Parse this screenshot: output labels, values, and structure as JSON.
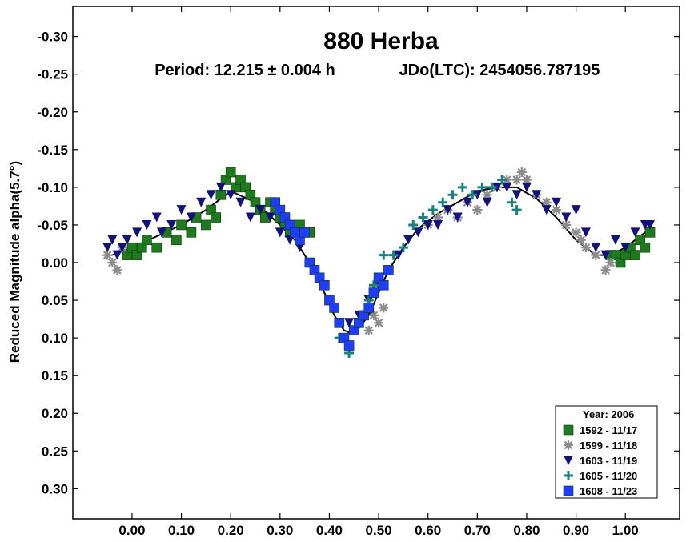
{
  "chart_data": {
    "type": "scatter",
    "title": "880 Herba",
    "subtitle_period": "Period: 12.215 ± 0.004 h",
    "subtitle_epoch": "JDo(LTC): 2454056.787195",
    "ylabel": "Reduced Magnitude alpha(5.7°)",
    "xlabel": "",
    "xlim": [
      -0.12,
      1.11
    ],
    "ylim": [
      -0.34,
      0.34
    ],
    "y_inverted": true,
    "x_ticks": [
      0.0,
      0.1,
      0.2,
      0.3,
      0.4,
      0.5,
      0.6,
      0.7,
      0.8,
      0.9,
      1.0
    ],
    "x_tick_labels": [
      "0.00",
      "0.10",
      "0.20",
      "0.30",
      "0.40",
      "0.50",
      "0.60",
      "0.70",
      "0.80",
      "0.90",
      "1.00"
    ],
    "y_ticks": [
      -0.3,
      -0.25,
      -0.2,
      -0.15,
      -0.1,
      -0.05,
      0.0,
      0.05,
      0.1,
      0.15,
      0.2,
      0.25,
      0.3
    ],
    "y_tick_labels": [
      "-0.30",
      "-0.25",
      "-0.20",
      "-0.15",
      "-0.10",
      "-0.05",
      "0.00",
      "0.05",
      "0.10",
      "0.15",
      "0.20",
      "0.25",
      "0.30"
    ],
    "grid": false,
    "legend": {
      "placement": "bottom-right",
      "title": "Year: 2006",
      "entries": [
        {
          "label": "1592 - 11/17",
          "color": "#1f7a1f",
          "marker": "square"
        },
        {
          "label": "1599 - 11/18",
          "color": "#8c8c8c",
          "marker": "asterisk"
        },
        {
          "label": "1603 - 11/19",
          "color": "#12127a",
          "marker": "triangle-down"
        },
        {
          "label": "1605 - 11/20",
          "color": "#1a8080",
          "marker": "plus"
        },
        {
          "label": "1608 - 11/23",
          "color": "#1f3dff",
          "marker": "square"
        }
      ]
    },
    "fit_curve": {
      "color": "#000000",
      "x": [
        -0.04,
        0.0,
        0.05,
        0.1,
        0.15,
        0.2,
        0.25,
        0.3,
        0.33,
        0.36,
        0.39,
        0.41,
        0.43,
        0.45,
        0.48,
        0.5,
        0.52,
        0.55,
        0.58,
        0.62,
        0.66,
        0.7,
        0.74,
        0.78,
        0.82,
        0.86,
        0.9,
        0.94,
        0.97,
        1.0,
        1.03,
        1.05
      ],
      "y": [
        -0.01,
        -0.02,
        -0.035,
        -0.05,
        -0.07,
        -0.095,
        -0.08,
        -0.05,
        -0.03,
        0.0,
        0.04,
        0.07,
        0.09,
        0.095,
        0.07,
        0.04,
        0.01,
        -0.02,
        -0.045,
        -0.065,
        -0.08,
        -0.095,
        -0.1,
        -0.1,
        -0.085,
        -0.06,
        -0.03,
        -0.01,
        -0.01,
        -0.02,
        -0.035,
        -0.045
      ]
    },
    "series": [
      {
        "name": "1592 - 11/17",
        "points": [
          [
            -0.01,
            -0.01
          ],
          [
            0.0,
            -0.02
          ],
          [
            0.01,
            -0.01
          ],
          [
            0.02,
            -0.02
          ],
          [
            0.03,
            -0.03
          ],
          [
            0.05,
            -0.02
          ],
          [
            0.07,
            -0.04
          ],
          [
            0.09,
            -0.03
          ],
          [
            0.1,
            -0.05
          ],
          [
            0.12,
            -0.04
          ],
          [
            0.13,
            -0.06
          ],
          [
            0.15,
            -0.05
          ],
          [
            0.16,
            -0.07
          ],
          [
            0.17,
            -0.06
          ],
          [
            0.18,
            -0.09
          ],
          [
            0.19,
            -0.11
          ],
          [
            0.2,
            -0.12
          ],
          [
            0.21,
            -0.1
          ],
          [
            0.22,
            -0.11
          ],
          [
            0.23,
            -0.1
          ],
          [
            0.24,
            -0.09
          ],
          [
            0.25,
            -0.08
          ],
          [
            0.26,
            -0.07
          ],
          [
            0.27,
            -0.06
          ],
          [
            0.28,
            -0.08
          ],
          [
            0.29,
            -0.07
          ],
          [
            0.3,
            -0.06
          ],
          [
            0.31,
            -0.05
          ],
          [
            0.32,
            -0.04
          ],
          [
            0.34,
            -0.05
          ],
          [
            0.36,
            -0.04
          ],
          [
            0.97,
            -0.01
          ],
          [
            0.98,
            -0.01
          ],
          [
            0.99,
            0.0
          ],
          [
            1.0,
            -0.01
          ],
          [
            1.01,
            -0.02
          ],
          [
            1.02,
            -0.01
          ],
          [
            1.03,
            -0.03
          ],
          [
            1.04,
            -0.02
          ],
          [
            1.05,
            -0.04
          ]
        ]
      },
      {
        "name": "1599 - 11/18",
        "points": [
          [
            -0.05,
            -0.01
          ],
          [
            -0.04,
            0.0
          ],
          [
            -0.03,
            0.01
          ],
          [
            -0.02,
            -0.02
          ],
          [
            0.48,
            0.09
          ],
          [
            0.49,
            0.07
          ],
          [
            0.5,
            0.08
          ],
          [
            0.51,
            0.06
          ],
          [
            0.6,
            -0.05
          ],
          [
            0.62,
            -0.06
          ],
          [
            0.64,
            -0.07
          ],
          [
            0.66,
            -0.06
          ],
          [
            0.68,
            -0.08
          ],
          [
            0.7,
            -0.07
          ],
          [
            0.72,
            -0.09
          ],
          [
            0.74,
            -0.1
          ],
          [
            0.76,
            -0.11
          ],
          [
            0.78,
            -0.11
          ],
          [
            0.79,
            -0.12
          ],
          [
            0.8,
            -0.11
          ],
          [
            0.82,
            -0.09
          ],
          [
            0.84,
            -0.08
          ],
          [
            0.86,
            -0.07
          ],
          [
            0.88,
            -0.05
          ],
          [
            0.9,
            -0.04
          ],
          [
            0.91,
            -0.03
          ],
          [
            0.92,
            -0.02
          ],
          [
            0.94,
            -0.01
          ],
          [
            0.96,
            0.01
          ],
          [
            0.97,
            0.0
          ]
        ]
      },
      {
        "name": "1603 - 11/19",
        "points": [
          [
            -0.05,
            -0.02
          ],
          [
            -0.04,
            -0.03
          ],
          [
            -0.03,
            -0.01
          ],
          [
            -0.02,
            -0.02
          ],
          [
            -0.01,
            -0.03
          ],
          [
            0.01,
            -0.04
          ],
          [
            0.03,
            -0.05
          ],
          [
            0.05,
            -0.06
          ],
          [
            0.06,
            -0.04
          ],
          [
            0.08,
            -0.05
          ],
          [
            0.1,
            -0.07
          ],
          [
            0.12,
            -0.06
          ],
          [
            0.14,
            -0.08
          ],
          [
            0.16,
            -0.09
          ],
          [
            0.18,
            -0.1
          ],
          [
            0.2,
            -0.09
          ],
          [
            0.22,
            -0.08
          ],
          [
            0.24,
            -0.06
          ],
          [
            0.26,
            -0.07
          ],
          [
            0.28,
            -0.06
          ],
          [
            0.3,
            -0.04
          ],
          [
            0.32,
            -0.03
          ],
          [
            0.34,
            -0.02
          ],
          [
            0.44,
            0.08
          ],
          [
            0.46,
            0.07
          ],
          [
            0.48,
            0.05
          ],
          [
            0.5,
            0.03
          ],
          [
            0.52,
            0.01
          ],
          [
            0.54,
            -0.01
          ],
          [
            0.56,
            -0.03
          ],
          [
            0.58,
            -0.04
          ],
          [
            0.6,
            -0.05
          ],
          [
            0.62,
            -0.05
          ],
          [
            0.64,
            -0.07
          ],
          [
            0.66,
            -0.06
          ],
          [
            0.68,
            -0.08
          ],
          [
            0.7,
            -0.09
          ],
          [
            0.72,
            -0.08
          ],
          [
            0.74,
            -0.1
          ],
          [
            0.76,
            -0.1
          ],
          [
            0.78,
            -0.09
          ],
          [
            0.8,
            -0.1
          ],
          [
            0.82,
            -0.09
          ],
          [
            0.84,
            -0.07
          ],
          [
            0.86,
            -0.08
          ],
          [
            0.88,
            -0.06
          ],
          [
            0.9,
            -0.07
          ],
          [
            0.92,
            -0.04
          ],
          [
            0.94,
            -0.02
          ],
          [
            0.96,
            -0.01
          ],
          [
            0.98,
            -0.03
          ],
          [
            1.0,
            -0.02
          ],
          [
            1.02,
            -0.04
          ],
          [
            1.04,
            -0.05
          ],
          [
            1.05,
            -0.05
          ]
        ]
      },
      {
        "name": "1605 - 11/20",
        "points": [
          [
            0.42,
            0.1
          ],
          [
            0.44,
            0.12
          ],
          [
            0.46,
            0.08
          ],
          [
            0.48,
            0.05
          ],
          [
            0.49,
            0.03
          ],
          [
            0.5,
            0.02
          ],
          [
            0.51,
            -0.01
          ],
          [
            0.53,
            -0.01
          ],
          [
            0.55,
            -0.02
          ],
          [
            0.57,
            -0.05
          ],
          [
            0.59,
            -0.06
          ],
          [
            0.61,
            -0.07
          ],
          [
            0.63,
            -0.08
          ],
          [
            0.65,
            -0.09
          ],
          [
            0.67,
            -0.1
          ],
          [
            0.69,
            -0.09
          ],
          [
            0.71,
            -0.1
          ],
          [
            0.73,
            -0.1
          ],
          [
            0.75,
            -0.11
          ],
          [
            0.77,
            -0.08
          ],
          [
            0.78,
            -0.07
          ]
        ]
      },
      {
        "name": "1608 - 11/23",
        "points": [
          [
            0.29,
            -0.08
          ],
          [
            0.3,
            -0.07
          ],
          [
            0.31,
            -0.06
          ],
          [
            0.32,
            -0.05
          ],
          [
            0.33,
            -0.04
          ],
          [
            0.34,
            -0.03
          ],
          [
            0.35,
            -0.04
          ],
          [
            0.36,
            0.0
          ],
          [
            0.37,
            0.01
          ],
          [
            0.38,
            0.02
          ],
          [
            0.39,
            0.03
          ],
          [
            0.4,
            0.05
          ],
          [
            0.41,
            0.06
          ],
          [
            0.42,
            0.08
          ],
          [
            0.43,
            0.1
          ],
          [
            0.44,
            0.11
          ],
          [
            0.45,
            0.09
          ],
          [
            0.46,
            0.08
          ],
          [
            0.47,
            0.07
          ],
          [
            0.48,
            0.06
          ],
          [
            0.49,
            0.04
          ],
          [
            0.5,
            0.02
          ],
          [
            0.51,
            0.03
          ],
          [
            0.52,
            0.01
          ]
        ]
      }
    ]
  }
}
